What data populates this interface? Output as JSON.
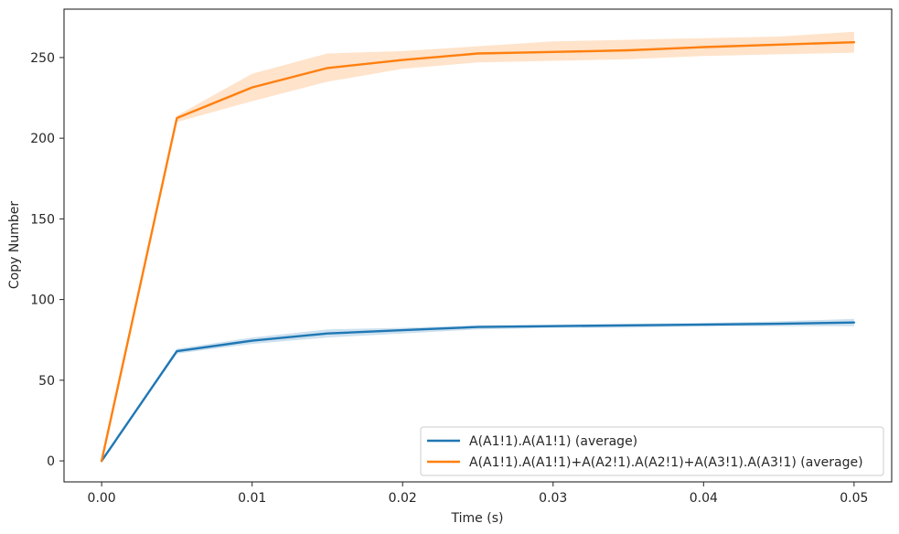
{
  "chart_data": {
    "type": "line",
    "title": "",
    "xlabel": "Time (s)",
    "ylabel": "Copy Number",
    "xlim": [
      -0.0025,
      0.0525
    ],
    "ylim": [
      -13,
      280
    ],
    "x_ticks": [
      0.0,
      0.01,
      0.02,
      0.03,
      0.04,
      0.05
    ],
    "x_tick_labels": [
      "0.00",
      "0.01",
      "0.02",
      "0.03",
      "0.04",
      "0.05"
    ],
    "y_ticks": [
      0,
      50,
      100,
      150,
      200,
      250
    ],
    "y_tick_labels": [
      "0",
      "50",
      "100",
      "150",
      "200",
      "250"
    ],
    "grid": false,
    "legend_position": "lower-right",
    "x": [
      0.0,
      0.005,
      0.01,
      0.015,
      0.02,
      0.025,
      0.03,
      0.035,
      0.04,
      0.045,
      0.05
    ],
    "series": [
      {
        "name": "A(A1!1).A(A1!1) (average)",
        "color": "#1f77b4",
        "values": [
          0,
          68,
          74.5,
          79,
          81,
          83,
          83.5,
          84,
          84.5,
          85,
          85.8
        ],
        "lower": [
          0,
          66.5,
          72.5,
          76.5,
          79,
          81.5,
          82.5,
          82.5,
          83.5,
          83.5,
          83.5
        ],
        "upper": [
          0,
          69.5,
          76.5,
          81.5,
          82.5,
          84,
          84.5,
          85,
          85.5,
          86.5,
          88
        ]
      },
      {
        "name": "A(A1!1).A(A1!1)+A(A2!1).A(A2!1)+A(A3!1).A(A3!1) (average)",
        "color": "#ff7f0e",
        "values": [
          0,
          212.5,
          231.5,
          243.5,
          248.5,
          252.5,
          253.5,
          254.5,
          256.5,
          258,
          259.5
        ],
        "lower": [
          0,
          210,
          223,
          235,
          243,
          247,
          248,
          249,
          251,
          252,
          253
        ],
        "upper": [
          0,
          214,
          240,
          252.5,
          254,
          257,
          260,
          261,
          262,
          263,
          266
        ]
      }
    ]
  }
}
